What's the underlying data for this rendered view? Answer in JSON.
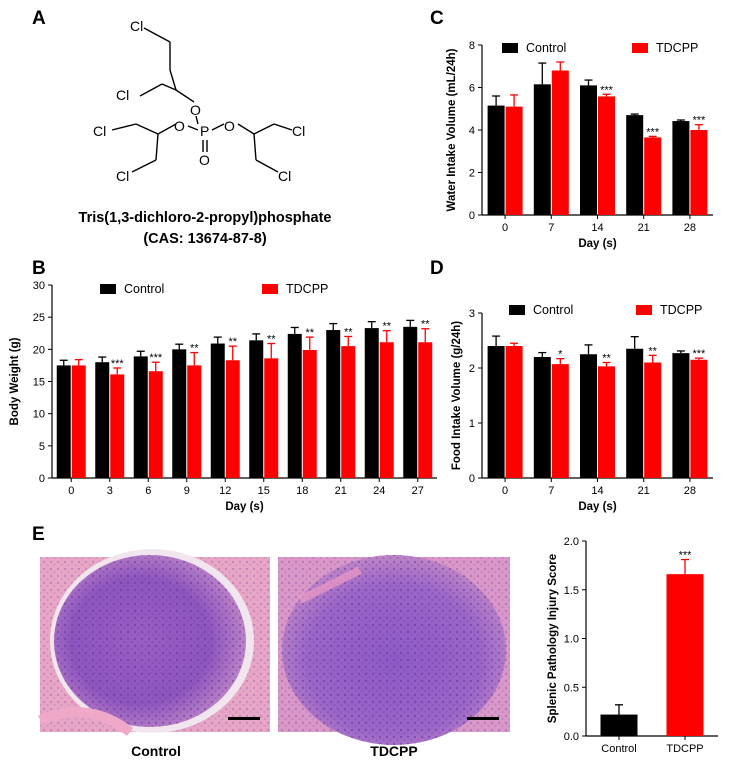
{
  "panels": {
    "a": "A",
    "b": "B",
    "c": "C",
    "d": "D",
    "e": "E"
  },
  "structure": {
    "name": "Tris(1,3-dichloro-2-propyl)phosphate",
    "cas": "(CAS: 13674-87-8)",
    "cl": "Cl",
    "o": "O",
    "p": "P"
  },
  "micrographs": {
    "control_label": "Control",
    "tdcpp_label": "TDCPP"
  },
  "colors": {
    "control": "#000000",
    "tdcpp": "#ff0000",
    "he_background": "#c9a0d8",
    "he_tissue": "#8a4fb8",
    "he_pink": "#e894c0"
  },
  "chart_data": [
    {
      "id": "chartB",
      "type": "bar",
      "categories": [
        "0",
        "3",
        "6",
        "9",
        "12",
        "15",
        "18",
        "21",
        "24",
        "27"
      ],
      "series": [
        {
          "name": "Control",
          "values": [
            17.5,
            18.0,
            18.9,
            20.0,
            20.9,
            21.4,
            22.4,
            23.0,
            23.3,
            23.5
          ],
          "errors": [
            0.8,
            0.8,
            0.8,
            0.8,
            1.0,
            1.0,
            1.0,
            1.0,
            1.0,
            1.0
          ]
        },
        {
          "name": "TDCPP",
          "values": [
            17.5,
            16.1,
            16.6,
            17.5,
            18.3,
            18.6,
            19.9,
            20.5,
            21.1,
            21.1
          ],
          "errors": [
            0.9,
            1.0,
            1.4,
            2.0,
            2.2,
            2.3,
            2.0,
            1.5,
            1.8,
            2.1
          ]
        }
      ],
      "significance": [
        "",
        "***",
        "***",
        "**",
        "**",
        "**",
        "**",
        "**",
        "**",
        "**"
      ],
      "xlabel": "Day (s)",
      "ylabel": "Body Weight (g)",
      "ylim": [
        0,
        30
      ],
      "yticks": [
        "0",
        "5",
        "10",
        "15",
        "20",
        "25",
        "30"
      ],
      "grid": false,
      "legend": "top"
    },
    {
      "id": "chartC",
      "type": "bar",
      "categories": [
        "0",
        "7",
        "14",
        "21",
        "28"
      ],
      "series": [
        {
          "name": "Control",
          "values": [
            5.15,
            6.15,
            6.1,
            4.7,
            4.42
          ],
          "errors": [
            0.45,
            1.0,
            0.25,
            0.05,
            0.05
          ]
        },
        {
          "name": "TDCPP",
          "values": [
            5.1,
            6.8,
            5.58,
            3.65,
            4.0
          ],
          "errors": [
            0.55,
            0.4,
            0.1,
            0.05,
            0.25
          ]
        }
      ],
      "significance": [
        "",
        "",
        "***",
        "***",
        "***"
      ],
      "xlabel": "Day (s)",
      "ylabel": "Water Intake Volume (mL/24h)",
      "ylim": [
        0,
        8
      ],
      "yticks": [
        "0",
        "2",
        "4",
        "6",
        "8"
      ],
      "grid": false,
      "legend": "top"
    },
    {
      "id": "chartD",
      "type": "bar",
      "categories": [
        "0",
        "7",
        "14",
        "21",
        "28"
      ],
      "series": [
        {
          "name": "Control",
          "values": [
            2.4,
            2.2,
            2.25,
            2.35,
            2.27
          ],
          "errors": [
            0.18,
            0.08,
            0.17,
            0.22,
            0.04
          ]
        },
        {
          "name": "TDCPP",
          "values": [
            2.4,
            2.07,
            2.03,
            2.1,
            2.15
          ],
          "errors": [
            0.05,
            0.1,
            0.07,
            0.13,
            0.03
          ]
        }
      ],
      "significance": [
        "",
        "*",
        "**",
        "**",
        "***"
      ],
      "xlabel": "Day (s)",
      "ylabel": "Food Intake Volume (g/24h)",
      "ylim": [
        0,
        3
      ],
      "yticks": [
        "0",
        "1",
        "2",
        "3"
      ],
      "grid": false,
      "legend": "top"
    },
    {
      "id": "chartE",
      "type": "bar",
      "categories": [
        "Control",
        "TDCPP"
      ],
      "series": [
        {
          "name": "",
          "values": [
            0.22,
            1.66
          ],
          "errors": [
            0.1,
            0.15
          ]
        }
      ],
      "bar_colors": [
        "#000000",
        "#ff0000"
      ],
      "significance": [
        "",
        "***"
      ],
      "xlabel": "",
      "ylabel": "Splenic Pathology Injury Score",
      "ylim": [
        0,
        2.0
      ],
      "yticks": [
        "0.0",
        "0.5",
        "1.0",
        "1.5",
        "2.0"
      ],
      "grid": false,
      "legend": "none"
    }
  ]
}
